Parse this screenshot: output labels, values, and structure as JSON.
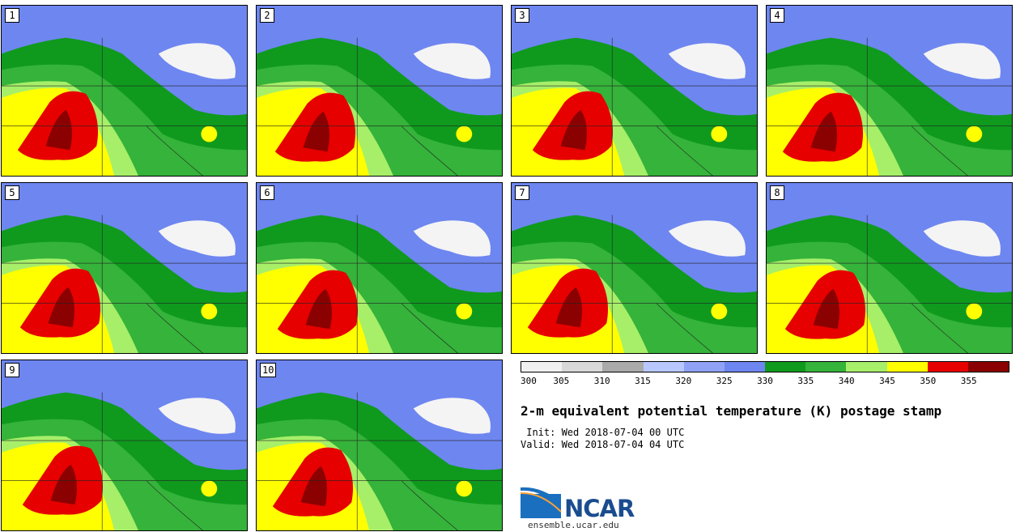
{
  "panels": [
    {
      "label": "1"
    },
    {
      "label": "2"
    },
    {
      "label": "3"
    },
    {
      "label": "4"
    },
    {
      "label": "5"
    },
    {
      "label": "6"
    },
    {
      "label": "7"
    },
    {
      "label": "8"
    },
    {
      "label": "9"
    },
    {
      "label": "10"
    }
  ],
  "colorbar": {
    "levels": [
      "300",
      "305",
      "310",
      "315",
      "320",
      "325",
      "330",
      "335",
      "340",
      "345",
      "350",
      "355"
    ],
    "colors": [
      "#f0f0f0",
      "#d8d8d8",
      "#aaaaaa",
      "#b8c8ff",
      "#8fa2f5",
      "#6e86f0",
      "#0f9a1e",
      "#35b33a",
      "#a7ef69",
      "#ffff00",
      "#e60000",
      "#8b0000"
    ]
  },
  "title": "2-m equivalent potential temperature (K) postage stamp",
  "init": " Init: Wed 2018-07-04 00 UTC",
  "valid": "Valid: Wed 2018-07-04 04 UTC",
  "logo": {
    "name": "NCAR",
    "url": "ensemble.ucar.edu"
  }
}
